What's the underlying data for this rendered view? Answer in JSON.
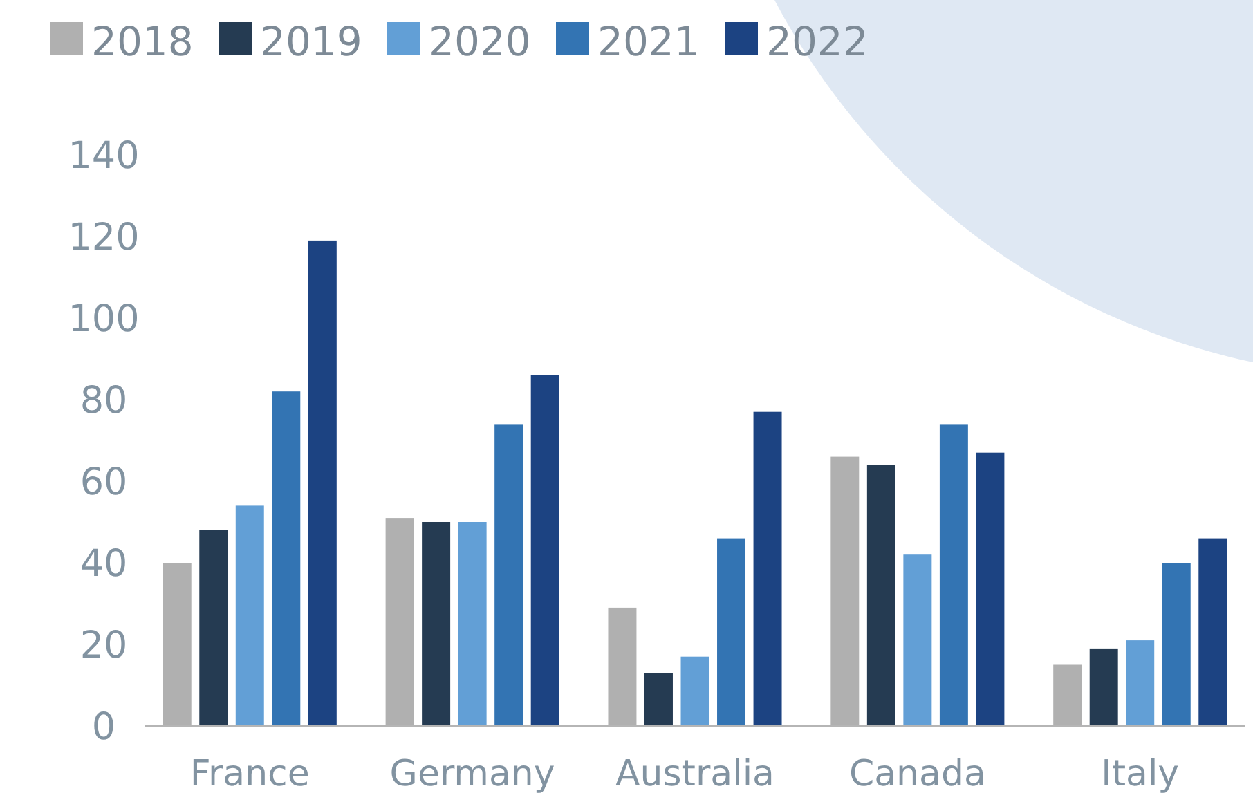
{
  "chart_data": {
    "type": "bar",
    "categories": [
      "France",
      "Germany",
      "Australia",
      "Canada",
      "Italy"
    ],
    "series": [
      {
        "name": "2018",
        "color": "#b0b0b0",
        "values": [
          40,
          51,
          29,
          66,
          15
        ]
      },
      {
        "name": "2019",
        "color": "#253b52",
        "values": [
          48,
          50,
          13,
          64,
          19
        ]
      },
      {
        "name": "2020",
        "color": "#629fd6",
        "values": [
          54,
          50,
          17,
          42,
          21
        ]
      },
      {
        "name": "2021",
        "color": "#3374b3",
        "values": [
          82,
          74,
          46,
          74,
          40
        ]
      },
      {
        "name": "2022",
        "color": "#1c4382",
        "values": [
          119,
          86,
          77,
          67,
          46
        ]
      }
    ],
    "ylim": [
      0,
      140
    ],
    "yticks": [
      0,
      20,
      40,
      60,
      80,
      100,
      120,
      140
    ],
    "grid": false,
    "legend": "top left"
  }
}
